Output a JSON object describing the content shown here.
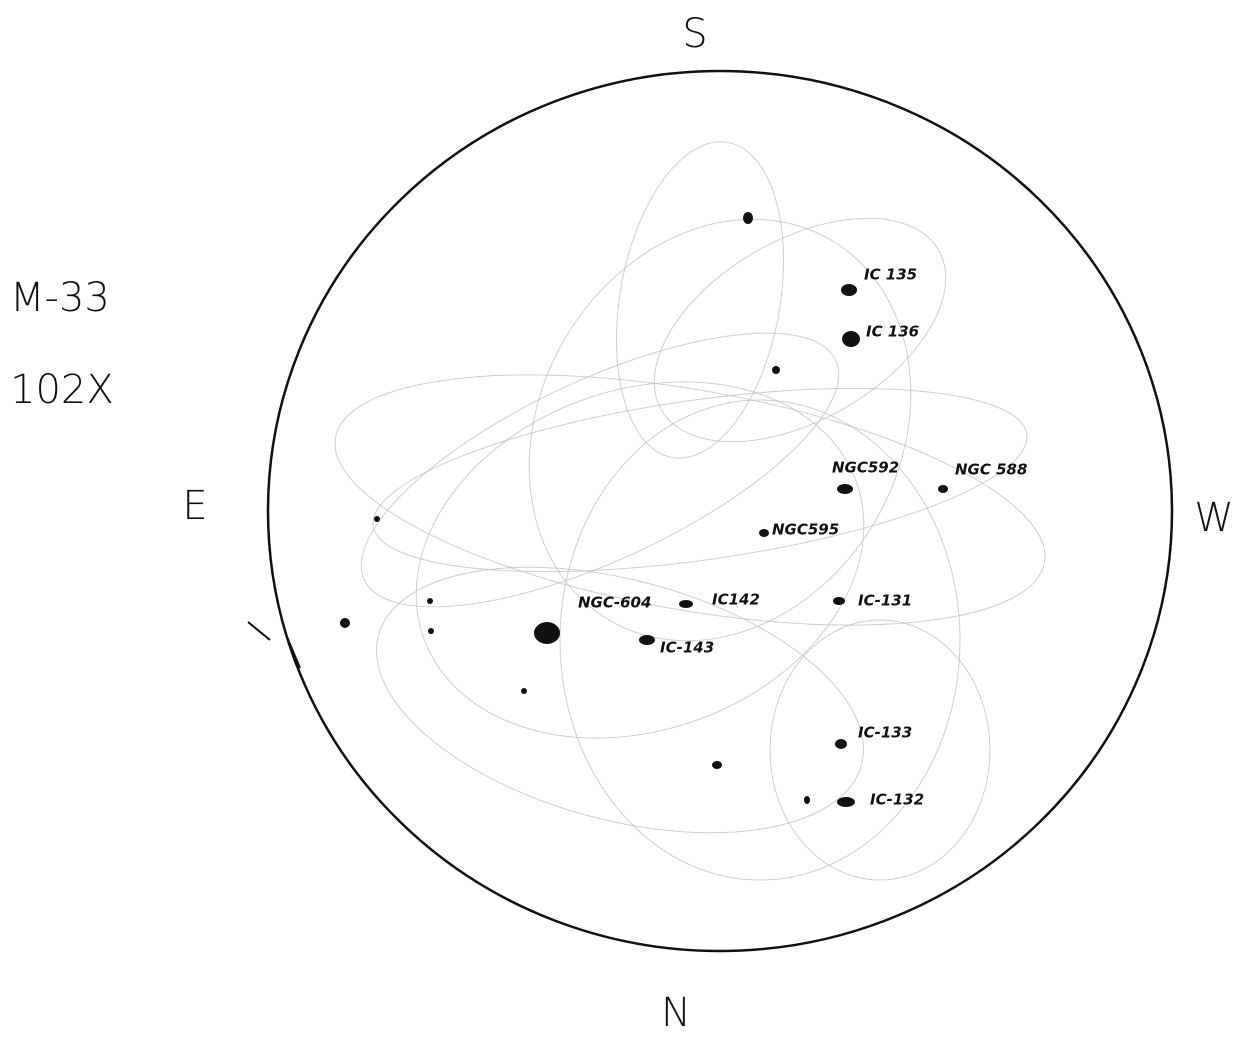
{
  "header": {
    "title": "M-33",
    "magnification": "102X"
  },
  "compass": {
    "south": "S",
    "east": "E",
    "west": "W",
    "north": "N"
  },
  "objects": [
    {
      "label": "IC 135"
    },
    {
      "label": "IC 136"
    },
    {
      "label": "NGC592"
    },
    {
      "label": "NGC 588"
    },
    {
      "label": "NGC595"
    },
    {
      "label": "NGC-604"
    },
    {
      "label": "IC142"
    },
    {
      "label": "IC-131"
    },
    {
      "label": "IC-143"
    },
    {
      "label": "IC-133"
    },
    {
      "label": "IC-132"
    }
  ]
}
